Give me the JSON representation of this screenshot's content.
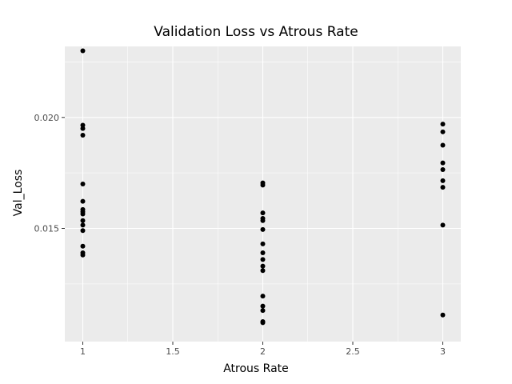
{
  "chart_data": {
    "type": "scatter",
    "title": "Validation Loss vs Atrous Rate",
    "xlabel": "Atrous Rate",
    "ylabel": "Val_Loss",
    "xlim": [
      0.9,
      3.1
    ],
    "ylim": [
      0.0099,
      0.0232
    ],
    "x_ticks": [
      1,
      1.5,
      2,
      2.5,
      3
    ],
    "x_tick_labels": [
      "1",
      "1.5",
      "2",
      "2.5",
      "3"
    ],
    "y_ticks": [
      0.015,
      0.02
    ],
    "y_tick_labels": [
      "0.015",
      "0.020"
    ],
    "grid": true,
    "legend": "none",
    "colors": {
      "panel_background": "#ebebeb",
      "grid": "#ffffff",
      "point": "#000000"
    },
    "points": [
      {
        "x": 1,
        "y": 0.023
      },
      {
        "x": 1,
        "y": 0.01965
      },
      {
        "x": 1,
        "y": 0.0195
      },
      {
        "x": 1,
        "y": 0.0192
      },
      {
        "x": 1,
        "y": 0.017
      },
      {
        "x": 1,
        "y": 0.01622
      },
      {
        "x": 1,
        "y": 0.01585
      },
      {
        "x": 1,
        "y": 0.01575
      },
      {
        "x": 1,
        "y": 0.01565
      },
      {
        "x": 1,
        "y": 0.01535
      },
      {
        "x": 1,
        "y": 0.01515
      },
      {
        "x": 1,
        "y": 0.0149
      },
      {
        "x": 1,
        "y": 0.0142
      },
      {
        "x": 1,
        "y": 0.0139
      },
      {
        "x": 1,
        "y": 0.0138
      },
      {
        "x": 2,
        "y": 0.01705
      },
      {
        "x": 2,
        "y": 0.01695
      },
      {
        "x": 2,
        "y": 0.0157
      },
      {
        "x": 2,
        "y": 0.01545
      },
      {
        "x": 2,
        "y": 0.01535
      },
      {
        "x": 2,
        "y": 0.01495
      },
      {
        "x": 2,
        "y": 0.0143
      },
      {
        "x": 2,
        "y": 0.0139
      },
      {
        "x": 2,
        "y": 0.0136
      },
      {
        "x": 2,
        "y": 0.0133
      },
      {
        "x": 2,
        "y": 0.0131
      },
      {
        "x": 2,
        "y": 0.01195
      },
      {
        "x": 2,
        "y": 0.0115
      },
      {
        "x": 2,
        "y": 0.0113
      },
      {
        "x": 2,
        "y": 0.0108
      },
      {
        "x": 2,
        "y": 0.01075
      },
      {
        "x": 3,
        "y": 0.0197
      },
      {
        "x": 3,
        "y": 0.01935
      },
      {
        "x": 3,
        "y": 0.01875
      },
      {
        "x": 3,
        "y": 0.01795
      },
      {
        "x": 3,
        "y": 0.01765
      },
      {
        "x": 3,
        "y": 0.01715
      },
      {
        "x": 3,
        "y": 0.01685
      },
      {
        "x": 3,
        "y": 0.01515
      },
      {
        "x": 3,
        "y": 0.0111
      }
    ]
  }
}
